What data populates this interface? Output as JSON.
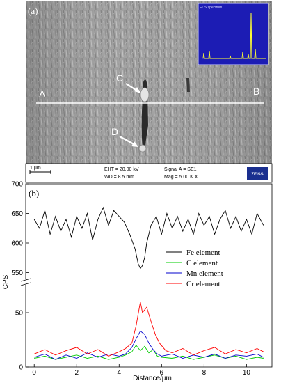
{
  "figure": {
    "panel_a_label": "(a)",
    "panel_b_label": "(b)"
  },
  "sem": {
    "line_start_label": "A",
    "line_end_label": "B",
    "particle_c_label": "C",
    "particle_d_label": "D",
    "scale_bar_label": "1 μm",
    "eht": "EHT = 20.00 kV",
    "wd": "WD =  8.5 mm",
    "signal": "Signal A = SE1",
    "mag": "Mag =    5.00 K X",
    "brand": "ZEISS",
    "inset": "EDS spectrum"
  },
  "chart_data": {
    "type": "line",
    "title": "",
    "xlabel": "Distance/μm",
    "ylabel": "CPS",
    "xlim": [
      -0.4,
      11.2
    ],
    "x_ticks": [
      0,
      2,
      4,
      6,
      8,
      10
    ],
    "y_axis_break": true,
    "upper_panel": {
      "ylim": [
        540,
        700
      ],
      "y_ticks": [
        550,
        600,
        650,
        700
      ]
    },
    "lower_panel": {
      "ylim": [
        0,
        75
      ],
      "y_ticks": [
        0,
        50
      ]
    },
    "legend_position": "right",
    "series": [
      {
        "name": "Fe element",
        "color": "#000000",
        "panel": "upper",
        "x": [
          0,
          0.25,
          0.5,
          0.75,
          1,
          1.25,
          1.5,
          1.75,
          2,
          2.25,
          2.5,
          2.75,
          3,
          3.25,
          3.5,
          3.75,
          4,
          4.25,
          4.5,
          4.75,
          4.9,
          5.0,
          5.1,
          5.2,
          5.3,
          5.5,
          5.75,
          6,
          6.25,
          6.5,
          6.75,
          7,
          7.25,
          7.5,
          7.75,
          8,
          8.25,
          8.5,
          8.75,
          9,
          9.25,
          9.5,
          9.75,
          10,
          10.25,
          10.5,
          10.8
        ],
        "values": [
          640,
          625,
          655,
          615,
          645,
          620,
          640,
          610,
          645,
          625,
          650,
          605,
          640,
          660,
          630,
          655,
          645,
          635,
          615,
          590,
          565,
          557,
          562,
          575,
          600,
          630,
          645,
          615,
          650,
          625,
          645,
          620,
          640,
          615,
          650,
          630,
          645,
          615,
          640,
          655,
          625,
          645,
          620,
          640,
          615,
          650,
          630
        ]
      },
      {
        "name": "C element",
        "color": "#00cc00",
        "panel": "lower",
        "x": [
          0,
          0.5,
          1,
          1.5,
          2,
          2.5,
          3,
          3.5,
          4,
          4.3,
          4.6,
          4.8,
          5.0,
          5.2,
          5.4,
          5.6,
          5.8,
          6,
          6.5,
          7,
          7.5,
          8,
          8.5,
          9,
          9.5,
          10,
          10.5,
          10.8
        ],
        "values": [
          8,
          10,
          7,
          9,
          11,
          8,
          10,
          7,
          9,
          11,
          14,
          20,
          15,
          19,
          13,
          16,
          10,
          9,
          8,
          10,
          7,
          9,
          11,
          8,
          10,
          7,
          9,
          8
        ]
      },
      {
        "name": "Mn element",
        "color": "#0000cc",
        "panel": "lower",
        "x": [
          0,
          0.5,
          1,
          1.5,
          2,
          2.5,
          3,
          3.5,
          4,
          4.3,
          4.6,
          4.8,
          5.0,
          5.2,
          5.4,
          5.6,
          5.8,
          6,
          6.5,
          7,
          7.5,
          8,
          8.5,
          9,
          9.5,
          10,
          10.5,
          10.8
        ],
        "values": [
          9,
          12,
          7,
          11,
          8,
          13,
          9,
          12,
          10,
          12,
          18,
          26,
          33,
          30,
          22,
          16,
          12,
          10,
          12,
          8,
          11,
          9,
          12,
          8,
          11,
          10,
          12,
          9
        ]
      },
      {
        "name": "Cr element",
        "color": "#ff0000",
        "panel": "lower",
        "x": [
          0,
          0.5,
          1,
          1.5,
          2,
          2.5,
          3,
          3.5,
          4,
          4.3,
          4.6,
          4.8,
          5.0,
          5.1,
          5.3,
          5.5,
          5.7,
          5.9,
          6.2,
          6.5,
          7,
          7.5,
          8,
          8.5,
          9,
          9.5,
          10,
          10.5,
          10.8
        ],
        "values": [
          12,
          16,
          11,
          15,
          18,
          12,
          16,
          10,
          14,
          17,
          22,
          38,
          60,
          50,
          55,
          42,
          30,
          22,
          15,
          13,
          17,
          11,
          15,
          18,
          12,
          16,
          13,
          17,
          14
        ]
      }
    ]
  }
}
